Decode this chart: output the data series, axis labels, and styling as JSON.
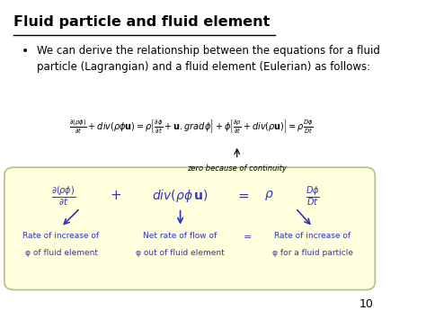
{
  "title": "Fluid particle and fluid element",
  "bullet_text": "We can derive the relationship between the equations for a fluid\nparticle (Lagrangian) and a fluid element (Eulerian) as follows:",
  "zero_continuity_label": "zero because of continuity",
  "label_left1": "Rate of increase of",
  "label_left2": "φ of fluid element",
  "label_mid1": "Net rate of flow of",
  "label_mid2": "φ out of fluid element",
  "label_eq": "=",
  "label_right1": "Rate of increase of",
  "label_right2": "φ for a fluid particle",
  "bg_color": "#ffffff",
  "box_fill": "#ffffdd",
  "box_edge": "#bbbb88",
  "title_color": "#000000",
  "text_color": "#000000",
  "blue_color": "#3333bb",
  "page_number": "10"
}
